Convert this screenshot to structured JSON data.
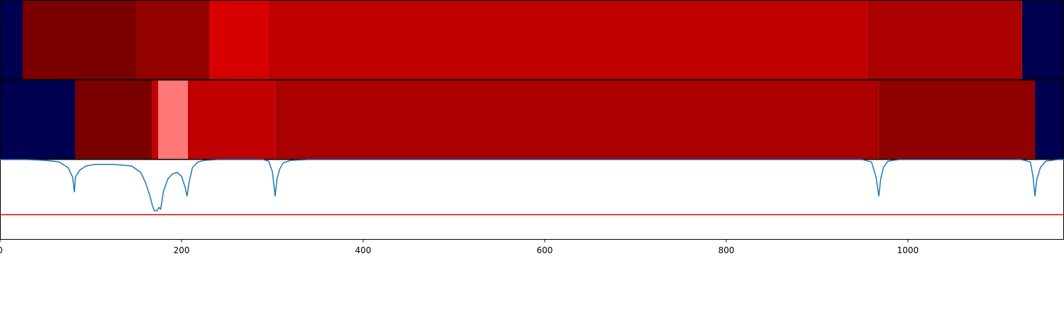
{
  "chart_data": {
    "type": "segments-line",
    "xlim": [
      0,
      1172
    ],
    "xticks": [
      0,
      200,
      400,
      600,
      800,
      1000
    ],
    "tracks": [
      {
        "segments": [
          {
            "start": 0,
            "end": 25,
            "color": "#000050"
          },
          {
            "start": 25,
            "end": 150,
            "color": "#7a0000"
          },
          {
            "start": 150,
            "end": 230.5,
            "color": "#940000"
          },
          {
            "start": 230.5,
            "end": 295.3,
            "color": "#d60000"
          },
          {
            "start": 295.3,
            "end": 955.5,
            "color": "#c00000"
          },
          {
            "start": 955.5,
            "end": 1125.8,
            "color": "#aa0000"
          },
          {
            "start": 1125.8,
            "end": 1172,
            "color": "#000050"
          }
        ]
      },
      {
        "segments": [
          {
            "start": 0,
            "end": 82.8,
            "color": "#000050"
          },
          {
            "start": 82.8,
            "end": 167.2,
            "color": "#7a0000"
          },
          {
            "start": 167.2,
            "end": 174.2,
            "color": "#c00000"
          },
          {
            "start": 174.2,
            "end": 207,
            "color": "#ff7777"
          },
          {
            "start": 207,
            "end": 303,
            "color": "#c00000"
          },
          {
            "start": 303,
            "end": 968,
            "color": "#aa0000"
          },
          {
            "start": 968,
            "end": 1140,
            "color": "#900000"
          },
          {
            "start": 1140,
            "end": 1172,
            "color": "#000050"
          }
        ]
      }
    ],
    "ylim": [
      0,
      1
    ],
    "threshold": 0.31,
    "threshold_color": "#ee0000",
    "line_color": "#1f77b4",
    "x": [
      0,
      30,
      50,
      65,
      75,
      80,
      82,
      83,
      88,
      95,
      105,
      115,
      125,
      135,
      145,
      150,
      155,
      160,
      165,
      168,
      170,
      173,
      175,
      177,
      180,
      185,
      190,
      195,
      200,
      204,
      206,
      208,
      212,
      218,
      225,
      240,
      290,
      296,
      300,
      302,
      303,
      305,
      308,
      312,
      320,
      340,
      950,
      960,
      965,
      968,
      970,
      973,
      978,
      990,
      1125,
      1135,
      1138,
      1140,
      1142,
      1146,
      1152,
      1165,
      1172
    ],
    "values": [
      1.0,
      1.0,
      0.99,
      0.97,
      0.9,
      0.78,
      0.59,
      0.78,
      0.87,
      0.92,
      0.94,
      0.94,
      0.94,
      0.93,
      0.92,
      0.88,
      0.84,
      0.72,
      0.55,
      0.42,
      0.36,
      0.36,
      0.4,
      0.38,
      0.6,
      0.76,
      0.82,
      0.84,
      0.79,
      0.65,
      0.54,
      0.7,
      0.9,
      0.97,
      0.99,
      1.0,
      1.0,
      0.98,
      0.85,
      0.65,
      0.54,
      0.75,
      0.88,
      0.96,
      0.99,
      1.0,
      1.0,
      0.97,
      0.78,
      0.54,
      0.75,
      0.9,
      0.98,
      1.0,
      1.0,
      0.97,
      0.78,
      0.54,
      0.75,
      0.9,
      0.98,
      1.0,
      1.0
    ]
  }
}
